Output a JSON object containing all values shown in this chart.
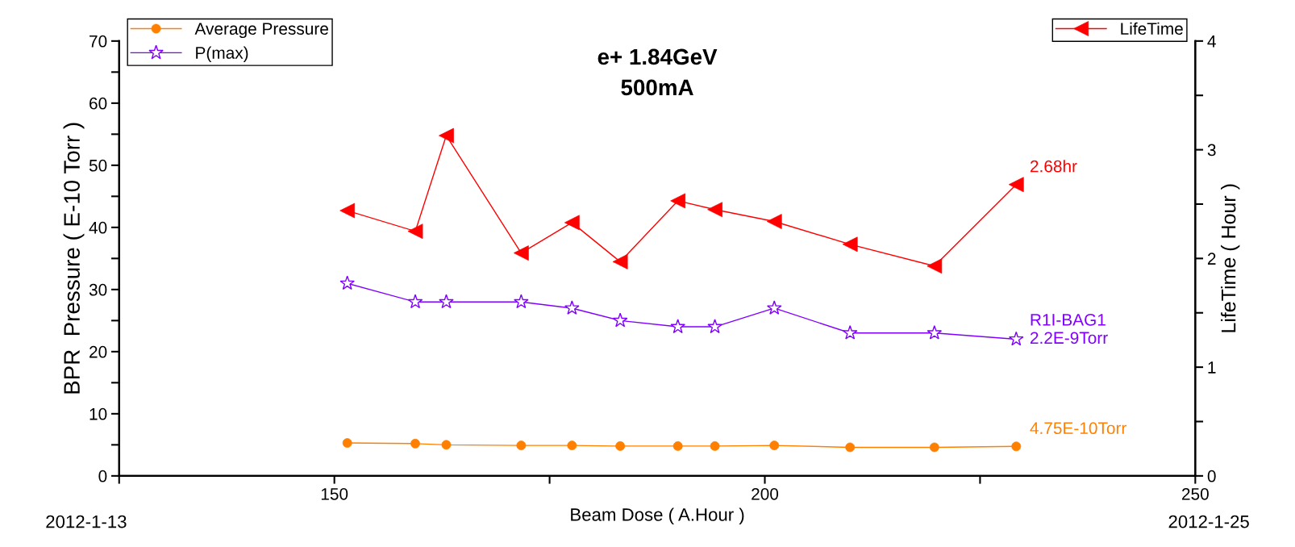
{
  "chart_data": {
    "type": "line",
    "title": "e+ 1.84GeV\n500mA",
    "xlabel": "Beam Dose ( A.Hour )",
    "ylabel": "BPR  Pressure ( E-10 Torr )",
    "y2label": "LifeTime ( Hour )",
    "x": [
      151.5,
      159.4,
      163.0,
      171.7,
      177.6,
      183.2,
      189.9,
      194.2,
      201.1,
      209.9,
      219.7,
      229.2
    ],
    "series": [
      {
        "name": "Average Pressure",
        "color": "#ff8000",
        "marker": "circle",
        "values": [
          5.3,
          5.2,
          5.0,
          4.9,
          4.9,
          4.8,
          4.8,
          4.8,
          4.9,
          4.6,
          4.6,
          4.75
        ],
        "value_labels": [
          null,
          null,
          null,
          null,
          null,
          null,
          null,
          null,
          null,
          null,
          null,
          "4.75E-10Torr"
        ]
      },
      {
        "name": "P(max)",
        "color": "#8000ff",
        "marker": "star",
        "values": [
          31,
          28,
          28,
          28,
          27,
          25,
          24,
          24,
          27,
          23,
          23,
          22
        ],
        "value_labels": [
          null,
          null,
          null,
          null,
          null,
          null,
          null,
          null,
          null,
          null,
          null,
          "R1I-BAG1\n2.2E-9Torr"
        ]
      },
      {
        "name": "LifeTime",
        "color": "#ff0000",
        "marker": "triangle",
        "axis": "y2",
        "values": [
          2.44,
          2.25,
          3.13,
          2.05,
          2.33,
          1.97,
          2.53,
          2.45,
          2.34,
          2.13,
          1.93,
          2.68
        ],
        "value_labels": [
          null,
          null,
          null,
          null,
          null,
          null,
          null,
          null,
          null,
          null,
          null,
          "2.68hr"
        ]
      }
    ],
    "xlim": [
      125,
      250
    ],
    "xticks": [
      {
        "value": 125,
        "label": null
      },
      150,
      {
        "value": 175,
        "label": null
      },
      200,
      {
        "value": 225,
        "label": null
      },
      250
    ],
    "ylim": [
      0,
      70
    ],
    "yticks": [
      0,
      {
        "value": 5,
        "label": null
      },
      10,
      {
        "value": 15,
        "label": null
      },
      20,
      {
        "value": 25,
        "label": null
      },
      30,
      {
        "value": 35,
        "label": null
      },
      40,
      {
        "value": 45,
        "label": null
      },
      50,
      {
        "value": 55,
        "label": null
      },
      60,
      {
        "value": 65,
        "label": null
      },
      70
    ],
    "y2lim": [
      0,
      4
    ],
    "y2ticks": [
      0,
      {
        "value": 0.5,
        "label": null
      },
      1,
      {
        "value": 1.5,
        "label": null
      },
      2,
      {
        "value": 2.5,
        "label": null
      },
      3,
      {
        "value": 3.5,
        "label": null
      },
      4
    ],
    "annotations": [
      "2012-1-13",
      "2012-1-25"
    ],
    "legend": "top",
    "grid": false
  }
}
